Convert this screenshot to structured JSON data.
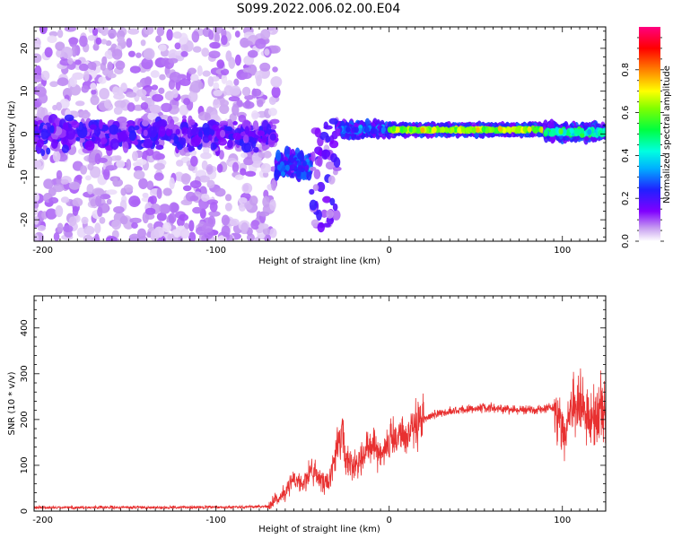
{
  "title": "S099.2022.006.02.00.E04",
  "colors": {
    "snr_line": "#e83030",
    "axes": "#000000"
  },
  "chart_data": [
    {
      "type": "heatmap",
      "title": "S099.2022.006.02.00.E04",
      "xlabel": "Height of straight line (km)",
      "ylabel": "Frequency (Hz)",
      "xlim": [
        -205,
        125
      ],
      "ylim": [
        -25,
        25
      ],
      "xticks": [
        -200,
        -100,
        0,
        100
      ],
      "yticks": [
        -20,
        -10,
        0,
        10,
        20
      ],
      "colorbar": {
        "label": "Normalized spectral amplitude",
        "range": [
          0.0,
          1.0
        ],
        "ticks": [
          0.0,
          0.2,
          0.4,
          0.6,
          0.8
        ],
        "colormap": "white-violet-blue-cyan-green-yellow-orange-red-magenta"
      },
      "features": [
        {
          "region_km": [
            -205,
            -65
          ],
          "freq_hz": [
            -25,
            25
          ],
          "amplitude": "low-scattered",
          "center_band_hz": [
            -5,
            5
          ]
        },
        {
          "region_km": [
            -65,
            -45
          ],
          "freq_hz": [
            -12,
            -3
          ],
          "amplitude": "medium"
        },
        {
          "region_km": [
            -45,
            -30
          ],
          "freq_hz": [
            -22,
            3
          ],
          "amplitude": "low-medium"
        },
        {
          "region_km": [
            -30,
            0
          ],
          "freq_hz": [
            -1,
            3
          ],
          "amplitude": "medium"
        },
        {
          "region_km": [
            0,
            90
          ],
          "freq_hz": [
            0,
            2
          ],
          "amplitude": "high"
        },
        {
          "region_km": [
            90,
            125
          ],
          "freq_hz": [
            -2,
            3
          ],
          "amplitude": "medium-high"
        }
      ]
    },
    {
      "type": "line",
      "xlabel": "Height of straight line (km)",
      "ylabel": "SNR (10 * v/v)",
      "xlim": [
        -205,
        125
      ],
      "ylim": [
        0,
        470
      ],
      "xticks": [
        -200,
        -100,
        0,
        100
      ],
      "yticks": [
        0,
        100,
        200,
        300,
        400
      ],
      "series": [
        {
          "x": [
            -205,
            -180,
            -150,
            -120,
            -90,
            -70,
            -60,
            -55,
            -50,
            -45,
            -40,
            -35,
            -30,
            -27,
            -25,
            -20,
            -15,
            -10,
            -5,
            0,
            5,
            10,
            15,
            20,
            25,
            30,
            40,
            50,
            60,
            70,
            80,
            85,
            90,
            95,
            100,
            102,
            105,
            110,
            115,
            118,
            120,
            122,
            125
          ],
          "y": [
            8,
            8,
            8,
            8,
            9,
            10,
            40,
            70,
            60,
            90,
            70,
            60,
            140,
            170,
            110,
            100,
            130,
            140,
            130,
            150,
            155,
            165,
            180,
            200,
            210,
            215,
            220,
            225,
            225,
            222,
            222,
            220,
            225,
            225,
            180,
            170,
            220,
            230,
            215,
            200,
            215,
            220,
            220
          ]
        }
      ]
    }
  ]
}
